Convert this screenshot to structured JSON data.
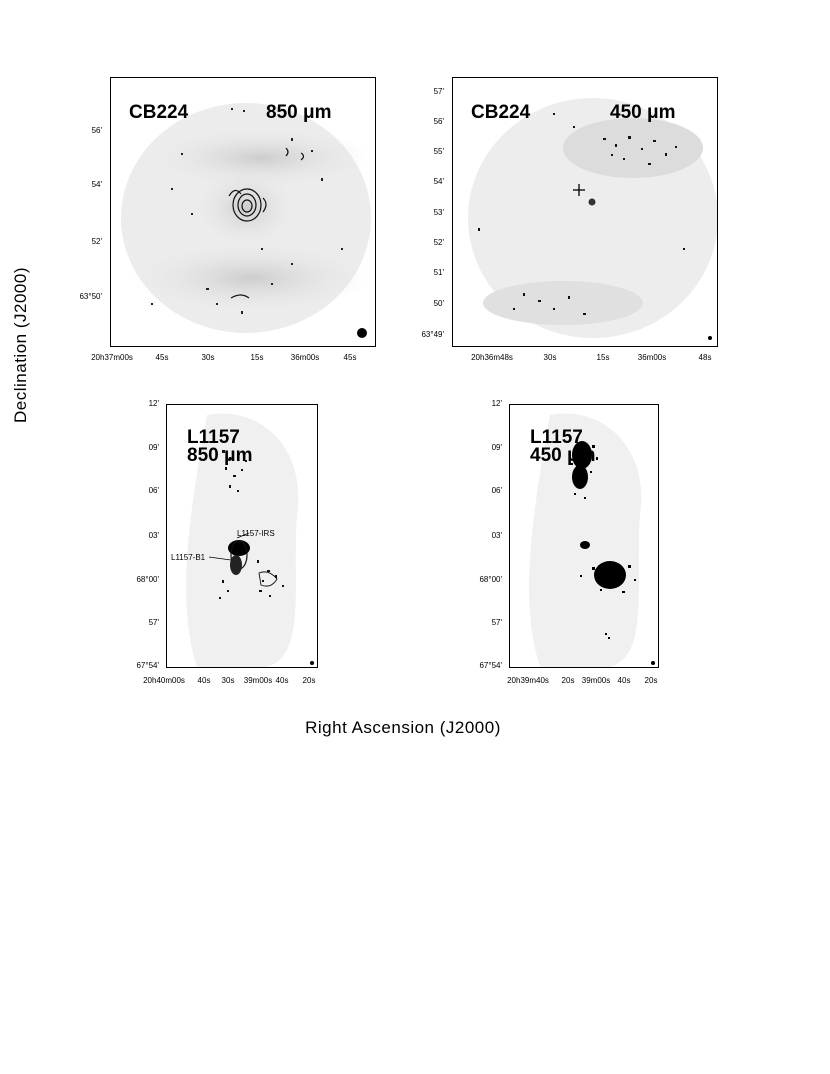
{
  "figure": {
    "ylabel": "Declination (J2000)",
    "xlabel": "Right Ascension (J2000)"
  },
  "panels": [
    {
      "source": "CB224",
      "wavelength": "850 μm",
      "yticks": [
        "56'",
        "54'",
        "52'",
        "63°50'"
      ],
      "xticks": [
        "20h37m00s",
        "45s",
        "30s",
        "15s",
        "36m00s",
        "45s"
      ]
    },
    {
      "source": "CB224",
      "wavelength": "450 μm",
      "yticks": [
        "57'",
        "56'",
        "55'",
        "54'",
        "53'",
        "52'",
        "51'",
        "50'",
        "63°49'"
      ],
      "xticks": [
        "20h36m48s",
        "30s",
        "15s",
        "36m00s",
        "48s"
      ]
    },
    {
      "source": "L1157",
      "wavelength": "850 μm",
      "annotations": [
        "L1157-IRS",
        "L1157-B1"
      ],
      "yticks": [
        "12'",
        "09'",
        "06'",
        "03'",
        "68°00'",
        "57'",
        "67°54'"
      ],
      "xticks": [
        "20h40m00s",
        "40s",
        "30s",
        "39m00s",
        "40s",
        "20s"
      ]
    },
    {
      "source": "L1157",
      "wavelength": "450 μm",
      "yticks": [
        "12'",
        "09'",
        "06'",
        "03'",
        "68°00'",
        "57'",
        "67°54'"
      ],
      "xticks": [
        "20h39m40s",
        "20s",
        "39m00s",
        "40s",
        "20s"
      ]
    }
  ]
}
